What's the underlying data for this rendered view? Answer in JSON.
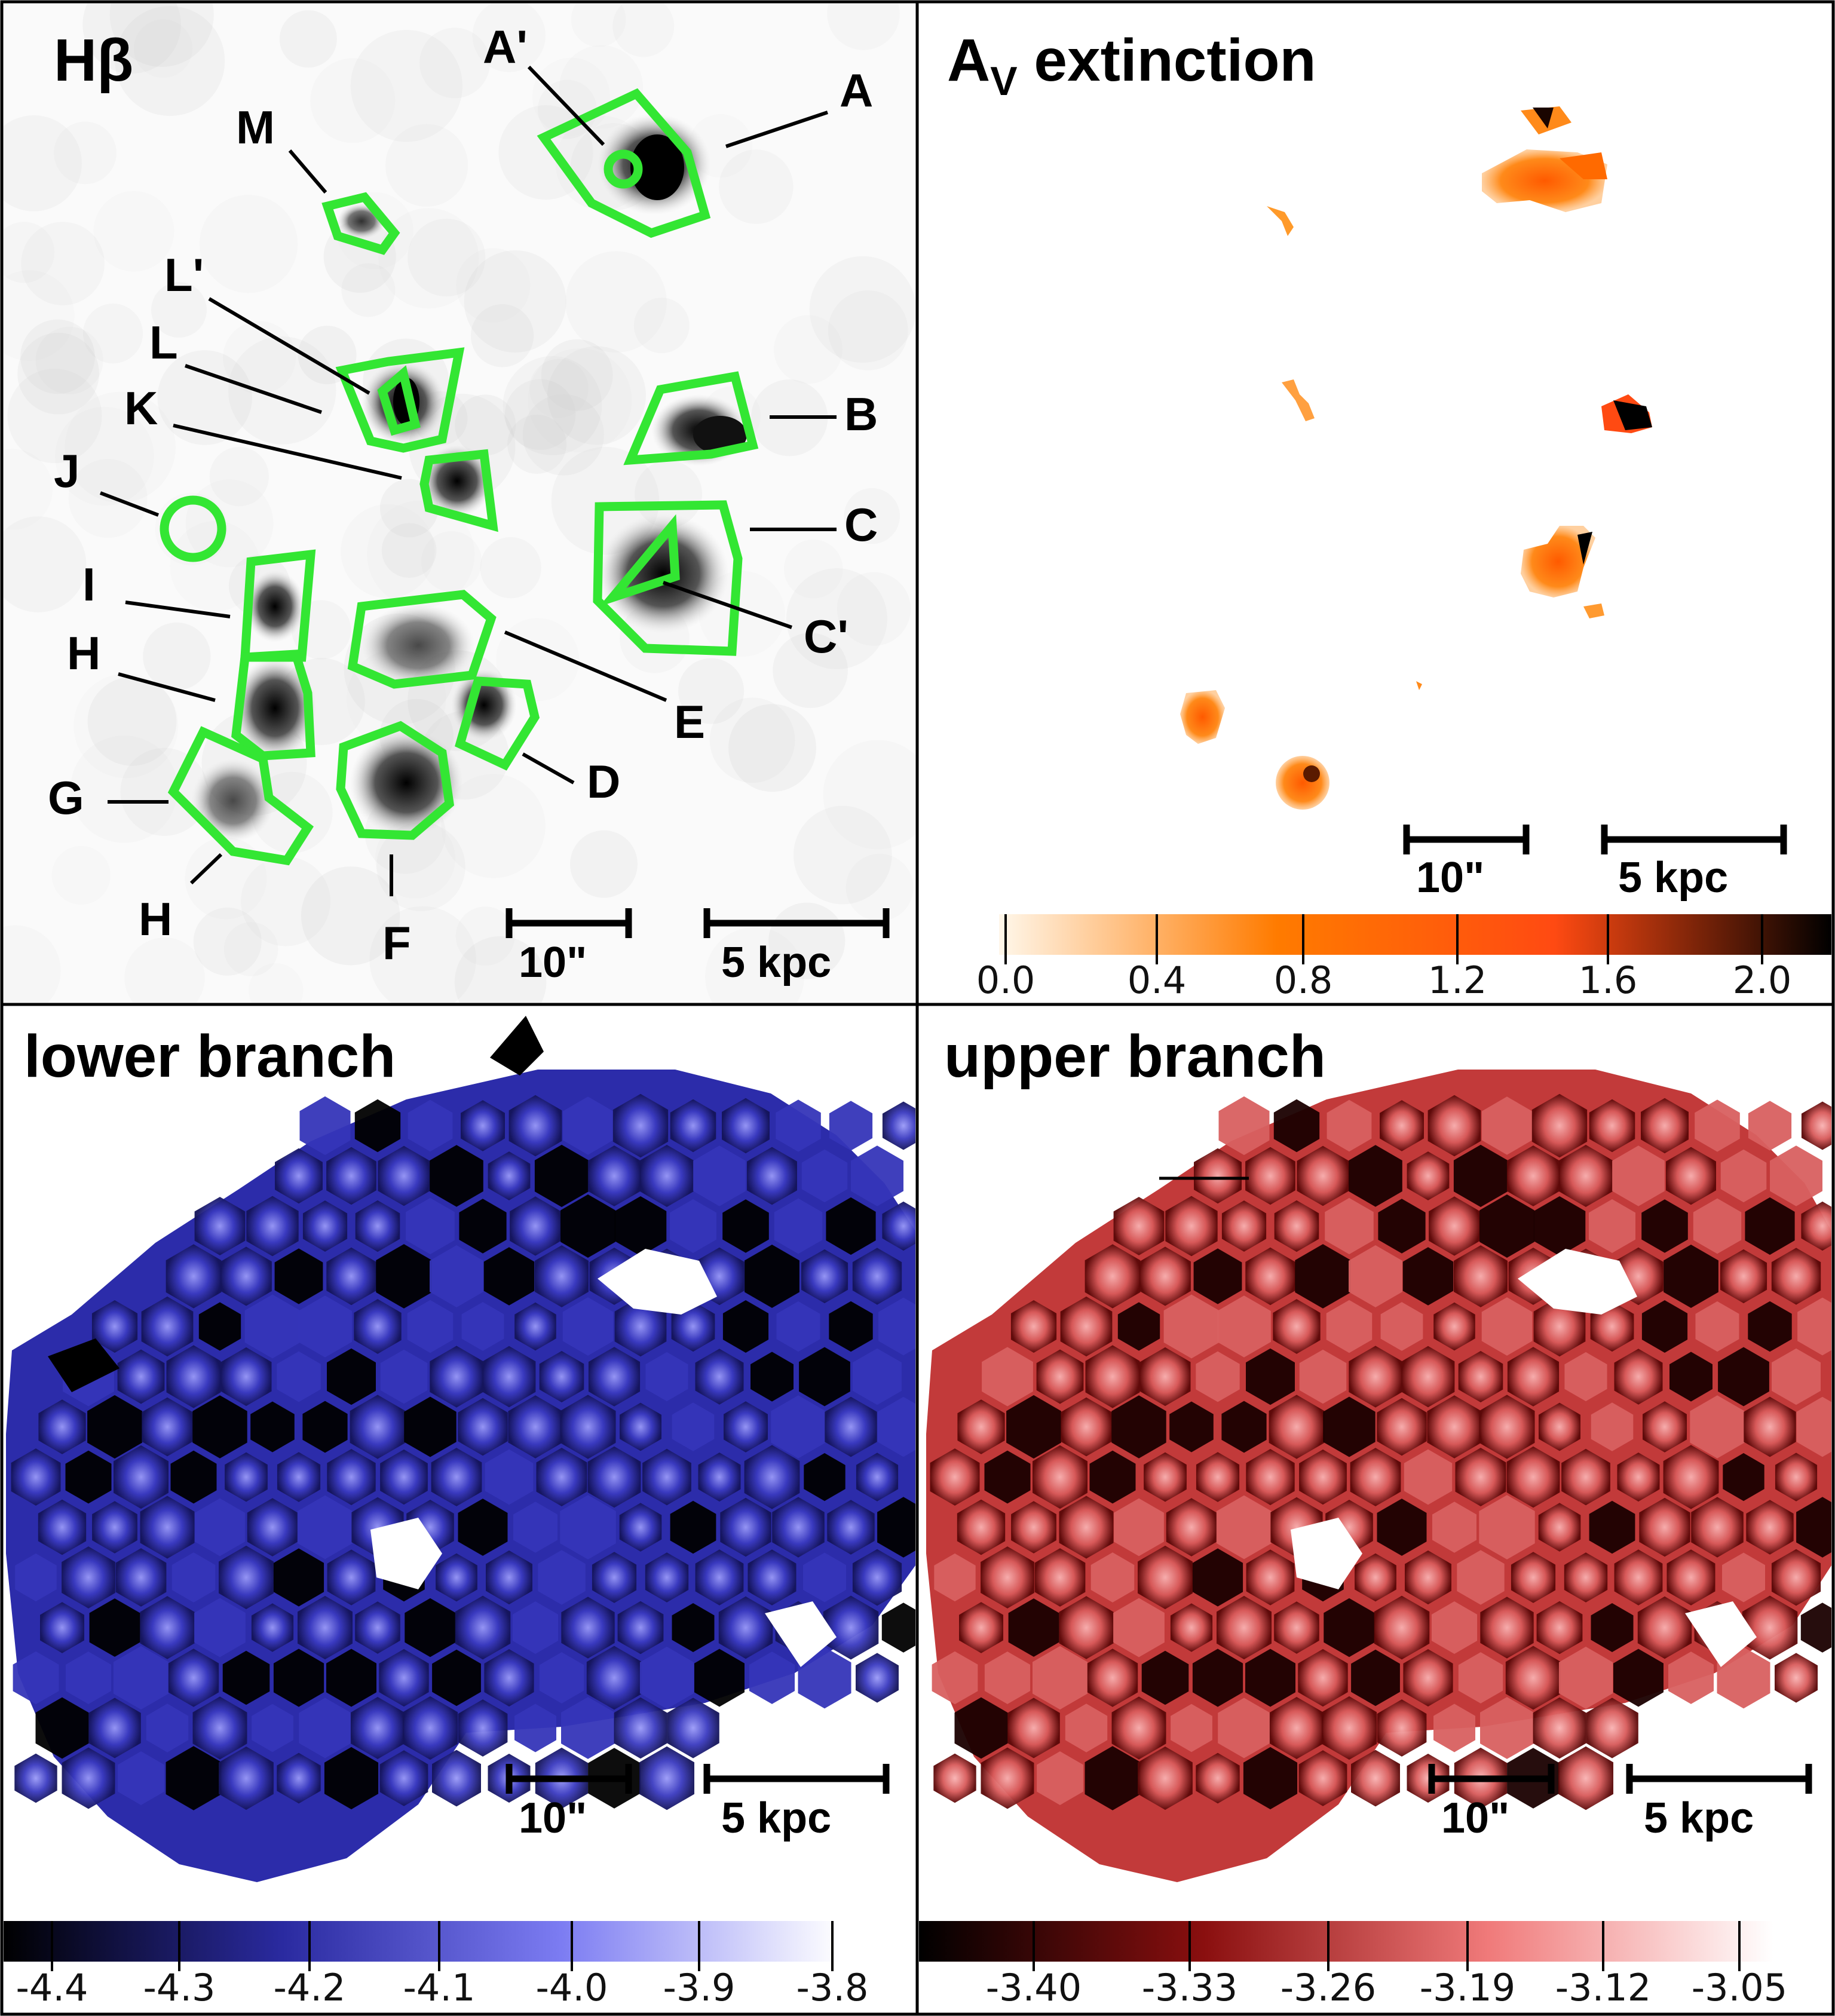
{
  "panels": {
    "hbeta": {
      "title": "Hβ"
    },
    "av": {
      "title_main": "A",
      "title_sub": "V",
      "title_rest": " extinction"
    },
    "lower": {
      "title": "lower branch"
    },
    "upper": {
      "title": "upper branch"
    }
  },
  "regions": [
    "A'",
    "A",
    "M",
    "L'",
    "L",
    "K",
    "B",
    "J",
    "C",
    "I",
    "C'",
    "H",
    "E",
    "D",
    "G",
    "F",
    "H"
  ],
  "scalebars": {
    "angular": "10\"",
    "physical": "5 kpc"
  },
  "colorbars": {
    "av": {
      "ticks": [
        "0.0",
        "0.4",
        "0.8",
        "1.2",
        "1.6",
        "2.0"
      ],
      "colors": [
        "#fff7ea",
        "#ff7b00",
        "#ff4a12",
        "#000000"
      ]
    },
    "lower": {
      "ticks": [
        "-4.4",
        "-4.3",
        "-4.2",
        "-4.1",
        "-4.0",
        "-3.9",
        "-3.8"
      ],
      "colors": [
        "#000000",
        "#2a2aa0",
        "#7c7cf2",
        "#ffffff"
      ]
    },
    "upper": {
      "ticks": [
        "-3.40",
        "-3.33",
        "-3.26",
        "-3.19",
        "-3.12",
        "-3.05"
      ],
      "colors": [
        "#000000",
        "#8a0f0f",
        "#f07a7a",
        "#ffffff"
      ]
    }
  },
  "colors": {
    "region_outline": "#33e633"
  }
}
